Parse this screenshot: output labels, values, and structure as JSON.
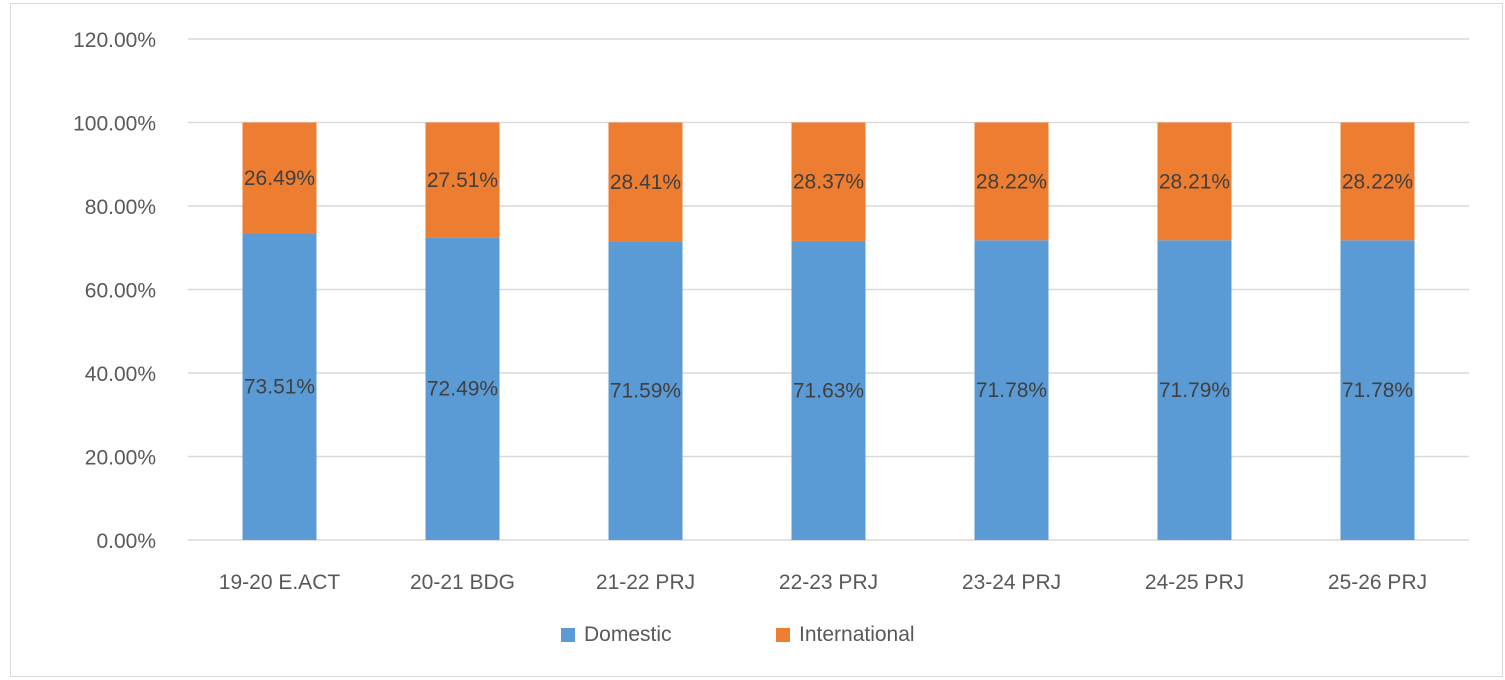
{
  "chart_data": {
    "type": "bar",
    "stacked": true,
    "categories": [
      "19-20 E.ACT",
      "20-21 BDG",
      "21-22 PRJ",
      "22-23 PRJ",
      "23-24 PRJ",
      "24-25 PRJ",
      "25-26 PRJ"
    ],
    "series": [
      {
        "name": "Domestic",
        "color": "#5b9bd5",
        "values": [
          73.51,
          72.49,
          71.59,
          71.63,
          71.78,
          71.79,
          71.78
        ],
        "labels": [
          "73.51%",
          "72.49%",
          "71.59%",
          "71.63%",
          "71.78%",
          "71.79%",
          "71.78%"
        ]
      },
      {
        "name": "International",
        "color": "#ed7d31",
        "values": [
          26.49,
          27.51,
          28.41,
          28.37,
          28.22,
          28.21,
          28.22
        ],
        "labels": [
          "26.49%",
          "27.51%",
          "28.41%",
          "28.37%",
          "28.22%",
          "28.21%",
          "28.22%"
        ]
      }
    ],
    "y_ticks": [
      "0.00%",
      "20.00%",
      "40.00%",
      "60.00%",
      "80.00%",
      "100.00%",
      "120.00%"
    ],
    "ylim": [
      0,
      120
    ],
    "title": "",
    "xlabel": "",
    "ylabel": "",
    "grid": true,
    "legend_position": "bottom",
    "gridline_color": "#d9d9d9"
  }
}
